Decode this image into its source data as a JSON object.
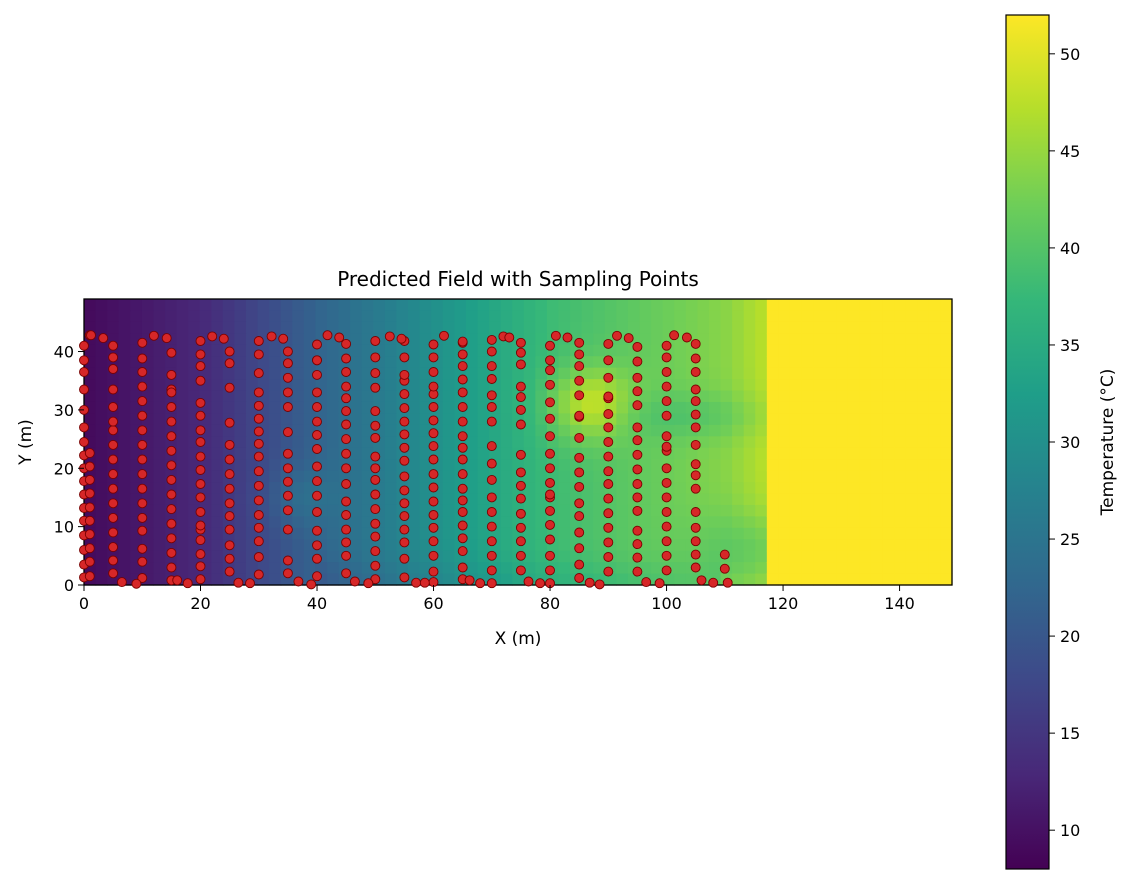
{
  "chart_data": {
    "type": "heatmap",
    "title": "Predicted Field with Sampling Points",
    "xlabel": "X (m)",
    "ylabel": "Y (m)",
    "xlim": [
      0,
      149
    ],
    "ylim": [
      0,
      49
    ],
    "xticks": [
      "0",
      "20",
      "40",
      "60",
      "80",
      "100",
      "120",
      "140"
    ],
    "yticks": [
      "0",
      "10",
      "20",
      "30",
      "40"
    ],
    "grid": false,
    "colorbar": {
      "label": "Temperature (°C)",
      "range": [
        8,
        52
      ],
      "ticks": [
        "10",
        "15",
        "20",
        "25",
        "30",
        "35",
        "40",
        "45",
        "50"
      ],
      "colormap": "viridis"
    },
    "points_style": {
      "fill": "#d62728",
      "stroke": "#7a0000"
    },
    "sampling_points": {
      "transects": [
        {
          "x": 0,
          "y": [
            1.3,
            3.5,
            6.0,
            8.5,
            11.0,
            13.2,
            15.5,
            17.8,
            20.0,
            22.2,
            24.5,
            27.0,
            30.0,
            33.5,
            36.5,
            38.5,
            41.0
          ]
        },
        {
          "x": 1,
          "y": [
            1.5,
            4.0,
            6.3,
            8.7,
            11.0,
            13.3,
            15.7,
            18.0,
            20.3,
            22.6,
            42.8
          ]
        },
        {
          "x": 5,
          "y": [
            2.0,
            4.2,
            6.5,
            9.0,
            11.5,
            14.0,
            16.5,
            19.0,
            21.5,
            24.0,
            26.5,
            28.0,
            30.5,
            33.5,
            37.0,
            39.0,
            41.0
          ]
        },
        {
          "x": 10,
          "y": [
            1.2,
            4.0,
            6.2,
            9.3,
            11.5,
            14.0,
            16.5,
            19.0,
            21.5,
            24.0,
            26.5,
            29.0,
            31.5,
            34.0,
            36.5,
            38.8,
            41.5
          ]
        },
        {
          "x": 15,
          "y": [
            0.8,
            3.0,
            5.5,
            8.0,
            10.5,
            13.0,
            15.5,
            18.0,
            20.5,
            23.0,
            25.5,
            28.0,
            30.5,
            33.5,
            36.0,
            39.8
          ]
        },
        {
          "x": 20,
          "y": [
            1.0,
            3.2,
            5.3,
            7.7,
            9.5,
            10.2,
            12.5,
            15.0,
            17.3,
            19.7,
            22.0,
            24.5,
            26.5,
            29.0,
            31.2,
            35.0,
            37.5,
            39.5,
            41.8
          ]
        },
        {
          "x": 25,
          "y": [
            2.3,
            4.5,
            6.8,
            9.5,
            11.8,
            14.0,
            16.5,
            19.0,
            21.5,
            24.0,
            27.8,
            33.8,
            38.0,
            40.0
          ]
        },
        {
          "x": 30,
          "y": [
            1.8,
            4.8,
            7.5,
            9.8,
            12.0,
            14.5,
            17.0,
            19.5,
            22.0,
            24.2,
            26.3,
            28.5,
            30.7,
            33.0,
            36.3,
            39.5,
            41.8
          ]
        },
        {
          "x": 35,
          "y": [
            2.0,
            4.2,
            9.5,
            12.8,
            15.3,
            17.7,
            20.0,
            22.5,
            26.2,
            30.5,
            33.0,
            35.5,
            38.0,
            40.0
          ]
        },
        {
          "x": 40,
          "y": [
            1.5,
            4.5,
            6.8,
            9.3,
            12.5,
            15.3,
            17.8,
            20.3,
            23.3,
            25.7,
            28.0,
            30.5,
            33.0,
            36.0,
            38.5,
            41.2
          ]
        },
        {
          "x": 45,
          "y": [
            2.0,
            5.0,
            7.3,
            9.5,
            12.0,
            14.3,
            17.3,
            20.0,
            22.5,
            25.0,
            27.5,
            29.8,
            32.0,
            34.0,
            36.5,
            38.8,
            41.3
          ]
        },
        {
          "x": 50,
          "y": [
            1.0,
            3.3,
            5.8,
            8.3,
            10.5,
            13.0,
            15.5,
            18.0,
            20.0,
            22.0,
            25.2,
            27.3,
            29.8,
            33.8,
            36.3,
            39.0,
            41.8
          ]
        },
        {
          "x": 55,
          "y": [
            1.3,
            4.5,
            7.3,
            9.5,
            11.8,
            14.0,
            16.2,
            18.6,
            21.3,
            23.5,
            25.8,
            28.0,
            30.3,
            32.7,
            35.0,
            36.0,
            39.0,
            41.8
          ]
        },
        {
          "x": 60,
          "y": [
            0.5,
            2.3,
            5.0,
            7.5,
            9.8,
            12.0,
            14.3,
            16.7,
            19.0,
            21.5,
            23.8,
            26.0,
            28.2,
            30.5,
            32.7,
            34.0,
            36.5,
            39.0,
            41.2
          ]
        },
        {
          "x": 65,
          "y": [
            1.0,
            3.0,
            5.8,
            8.0,
            10.2,
            12.5,
            14.5,
            16.5,
            19.0,
            21.5,
            23.5,
            25.5,
            28.0,
            30.5,
            33.0,
            35.2,
            37.5,
            39.5,
            41.5
          ]
        },
        {
          "x": 70,
          "y": [
            0.3,
            2.5,
            5.0,
            7.5,
            10.0,
            12.5,
            15.0,
            18.0,
            20.8,
            23.8,
            28.0,
            30.5,
            32.5,
            35.3,
            37.5,
            40.0,
            42.0
          ]
        },
        {
          "x": 75,
          "y": [
            2.5,
            5.0,
            7.5,
            9.8,
            12.2,
            14.8,
            17.0,
            19.3,
            22.3,
            27.5,
            30.0,
            32.2,
            34.0,
            37.8,
            39.8,
            41.5
          ]
        },
        {
          "x": 80,
          "y": [
            0.3,
            2.5,
            5.0,
            7.8,
            10.3,
            12.7,
            15.0,
            17.5,
            20.0,
            22.5,
            25.5,
            28.5,
            31.3,
            34.3,
            36.8,
            38.5,
            41.0
          ]
        },
        {
          "x": 85,
          "y": [
            1.2,
            3.5,
            6.3,
            9.0,
            11.8,
            14.0,
            16.8,
            19.3,
            21.8,
            25.2,
            28.8,
            32.5,
            35.0,
            37.5,
            39.5,
            41.5
          ]
        },
        {
          "x": 90,
          "y": [
            2.3,
            4.8,
            7.3,
            9.8,
            12.3,
            14.8,
            17.3,
            19.5,
            22.0,
            24.5,
            27.0,
            29.3,
            32.0,
            35.5,
            38.5,
            41.3
          ]
        },
        {
          "x": 95,
          "y": [
            2.3,
            4.7,
            7.0,
            9.3,
            12.7,
            15.0,
            17.3,
            19.8,
            22.3,
            24.8,
            27.0,
            30.8,
            33.2,
            35.5,
            38.3,
            40.8
          ]
        },
        {
          "x": 100,
          "y": [
            2.5,
            5.0,
            7.5,
            10.0,
            12.5,
            15.0,
            17.5,
            20.0,
            23.0,
            25.5,
            29.0,
            31.5,
            34.0,
            36.5,
            39.0,
            41.0
          ]
        },
        {
          "x": 105,
          "y": [
            3.0,
            5.2,
            7.5,
            9.8,
            12.5,
            16.5,
            18.8,
            20.7,
            24.0,
            27.0,
            29.2,
            31.5,
            33.5,
            36.5,
            38.8,
            41.3
          ]
        },
        {
          "x": 110,
          "y": [
            2.8,
            5.2
          ]
        }
      ],
      "extra": [
        {
          "x": 90,
          "y": 32.3
        },
        {
          "x": 100,
          "y": 23.7
        },
        {
          "x": 85,
          "y": 29.0
        },
        {
          "x": 80,
          "y": 15.5
        },
        {
          "x": 65,
          "y": 41.7
        },
        {
          "x": 40,
          "y": 38.5
        },
        {
          "x": 15,
          "y": 33.0
        }
      ],
      "top_turns": [
        {
          "x": 1.2,
          "y": 42.8
        },
        {
          "x": 3.3,
          "y": 42.3
        },
        {
          "x": 12.0,
          "y": 42.7
        },
        {
          "x": 14.2,
          "y": 42.3
        },
        {
          "x": 22.0,
          "y": 42.6
        },
        {
          "x": 24.0,
          "y": 42.2
        },
        {
          "x": 32.2,
          "y": 42.6
        },
        {
          "x": 34.2,
          "y": 42.2
        },
        {
          "x": 41.8,
          "y": 42.8
        },
        {
          "x": 43.8,
          "y": 42.4
        },
        {
          "x": 52.5,
          "y": 42.6
        },
        {
          "x": 54.5,
          "y": 42.2
        },
        {
          "x": 61.8,
          "y": 42.7
        },
        {
          "x": 72.0,
          "y": 42.6
        },
        {
          "x": 73.0,
          "y": 42.4
        },
        {
          "x": 81.0,
          "y": 42.7
        },
        {
          "x": 83.0,
          "y": 42.4
        },
        {
          "x": 91.5,
          "y": 42.7
        },
        {
          "x": 93.5,
          "y": 42.3
        },
        {
          "x": 101.3,
          "y": 42.8
        },
        {
          "x": 103.5,
          "y": 42.4
        }
      ],
      "bottom_turns": [
        {
          "x": 6.5,
          "y": 0.5
        },
        {
          "x": 9.0,
          "y": 0.2
        },
        {
          "x": 16.0,
          "y": 0.8
        },
        {
          "x": 17.8,
          "y": 0.3
        },
        {
          "x": 26.5,
          "y": 0.4
        },
        {
          "x": 28.5,
          "y": 0.3
        },
        {
          "x": 36.8,
          "y": 0.6
        },
        {
          "x": 39.0,
          "y": 0.1
        },
        {
          "x": 46.5,
          "y": 0.6
        },
        {
          "x": 48.8,
          "y": 0.3
        },
        {
          "x": 57.0,
          "y": 0.4
        },
        {
          "x": 58.5,
          "y": 0.4
        },
        {
          "x": 66.2,
          "y": 0.8
        },
        {
          "x": 68.0,
          "y": 0.3
        },
        {
          "x": 76.3,
          "y": 0.6
        },
        {
          "x": 78.3,
          "y": 0.3
        },
        {
          "x": 86.8,
          "y": 0.4
        },
        {
          "x": 88.5,
          "y": 0.1
        },
        {
          "x": 96.5,
          "y": 0.5
        },
        {
          "x": 98.8,
          "y": 0.3
        },
        {
          "x": 106.0,
          "y": 0.8
        },
        {
          "x": 108.0,
          "y": 0.4
        },
        {
          "x": 110.5,
          "y": 0.4
        }
      ]
    }
  }
}
